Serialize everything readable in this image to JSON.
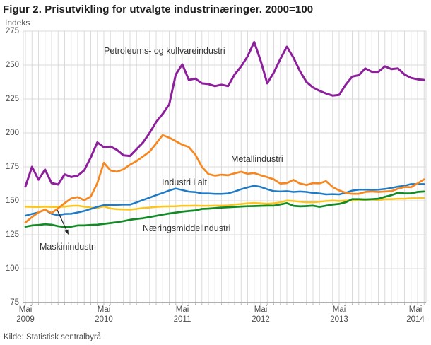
{
  "title": "Figur 2. Prisutvikling for utvalgte industrinæringer. 2000=100",
  "y_axis_label": "Indeks",
  "source": "Kilde: Statistisk sentralbyrå.",
  "colors": {
    "grid": "#DBDBDB",
    "axis": "#808080",
    "month_tick": "#BDBDBD",
    "annotation_arrow": "#222222",
    "title_text": "#1F1F1F",
    "tick_text": "#4D4D4D",
    "label_text": "#333333"
  },
  "chart_data": {
    "type": "line",
    "title": "Figur 2. Prisutvikling for utvalgte industrinæringer. 2000=100",
    "xlabel": "",
    "ylabel": "Indeks",
    "ylim": [
      75,
      275
    ],
    "grid": true,
    "legend": "inline-labels",
    "x_frequency": "monthly",
    "x_range": [
      "2009-05",
      "2014-06"
    ],
    "y_ticks": [
      275,
      250,
      225,
      200,
      175,
      150,
      125,
      100,
      75
    ],
    "x_ticks": [
      {
        "month": "Mai",
        "year": "2009"
      },
      {
        "month": "Mai",
        "year": "2010"
      },
      {
        "month": "Mai",
        "year": "2011"
      },
      {
        "month": "Mai",
        "year": "2012"
      },
      {
        "month": "Mai",
        "year": "2013"
      },
      {
        "month": "Mai",
        "year": "2014"
      }
    ],
    "series": [
      {
        "id": "petroleum",
        "name": "Petroleums- og kullvareindustri",
        "color": "#8E1F9C",
        "values": [
          160.5,
          175,
          165.5,
          173,
          163,
          162,
          169.5,
          167.5,
          168.5,
          172.5,
          182,
          193,
          189.5,
          190,
          187.5,
          183.5,
          183,
          188,
          193,
          200,
          208,
          214,
          221,
          243,
          250.5,
          239,
          240,
          236.5,
          236,
          234.5,
          235.5,
          234.5,
          243,
          249,
          256.5,
          267,
          253,
          236.5,
          244.5,
          254.5,
          263.5,
          255.5,
          245.5,
          237.5,
          233.5,
          231,
          229,
          227.5,
          228,
          235.5,
          241.5,
          242.5,
          247.5,
          245,
          245,
          249,
          247,
          247.5,
          243,
          240.5,
          239.5,
          239
        ]
      },
      {
        "id": "metall",
        "name": "Metallindustri",
        "color": "#F6871F",
        "values": [
          134,
          138,
          141.5,
          143.5,
          141,
          144.5,
          148.3,
          151.7,
          152.7,
          150.4,
          153.2,
          163,
          178,
          172.4,
          171.4,
          173.2,
          176.6,
          179.2,
          182.7,
          186.2,
          192.2,
          198.4,
          196.5,
          193.9,
          191.3,
          189.6,
          184,
          175,
          169.7,
          168.5,
          169.2,
          168.8,
          170.2,
          171.4,
          169.9,
          170.4,
          168.8,
          167.4,
          165.8,
          162.7,
          163,
          165.4,
          162.7,
          161.6,
          163,
          162.8,
          164.5,
          160.2,
          157.6,
          155.9,
          155.1,
          155.1,
          156.5,
          156.8,
          156.5,
          156.8,
          157.1,
          158.9,
          160.2,
          160,
          162.8,
          165.8
        ]
      },
      {
        "id": "industri",
        "name": "Industri i alt",
        "color": "#1F7AC6",
        "values": [
          139,
          140.3,
          141.4,
          143.4,
          140.4,
          139.3,
          140.3,
          140.4,
          141.4,
          142.5,
          144,
          145.5,
          146.8,
          147,
          147,
          147.2,
          147.2,
          148.8,
          150.6,
          152.3,
          154.1,
          155.8,
          157.6,
          159,
          157.9,
          156.7,
          156.4,
          155.4,
          155.4,
          155.1,
          155.1,
          155.4,
          156.8,
          158.5,
          159.9,
          161.1,
          160.2,
          158.5,
          157.1,
          156.8,
          157.1,
          156.5,
          156.8,
          156.5,
          155.8,
          155.4,
          154.7,
          154.9,
          154.7,
          155.9,
          157.5,
          158.2,
          158.2,
          158,
          158.2,
          158.7,
          159.5,
          160.4,
          161.1,
          162.3,
          162.3,
          162.3
        ]
      },
      {
        "id": "naeringsmiddel",
        "name": "Næringsmiddelindustri",
        "color": "#128A26",
        "values": [
          130.9,
          131.8,
          132.2,
          132.7,
          132.4,
          131.3,
          130.6,
          130.9,
          131.8,
          131.8,
          132.2,
          132.4,
          133,
          133.6,
          134.2,
          135,
          136,
          136.6,
          137.2,
          138,
          138.9,
          139.8,
          140.6,
          141.3,
          142,
          142.5,
          142.9,
          144,
          144.2,
          144.6,
          145,
          145.2,
          145.5,
          145.8,
          146,
          146.1,
          146.3,
          146.4,
          146.4,
          147.3,
          148.3,
          146.3,
          145.9,
          146.1,
          146.4,
          145.5,
          146.4,
          147.2,
          147.7,
          148.9,
          151.2,
          151.2,
          151,
          151.2,
          151.5,
          152.9,
          154.1,
          155.9,
          155.4,
          155.4,
          156.5,
          156.8
        ]
      },
      {
        "id": "maskin",
        "name": "Maskinindustri",
        "color": "#FBC51D",
        "values": [
          145.6,
          145.5,
          145.4,
          145.6,
          145.4,
          145.5,
          145.7,
          146.2,
          146.4,
          145.6,
          145,
          144.7,
          145.9,
          144.3,
          143.8,
          143.6,
          143.5,
          144,
          144.7,
          145,
          145.5,
          145.8,
          145.9,
          146,
          146.3,
          146.3,
          146.4,
          146.3,
          146.3,
          146.4,
          146.4,
          146.6,
          147.2,
          147.6,
          148.1,
          148.4,
          148.1,
          147.8,
          148.1,
          148.9,
          150.1,
          149.8,
          149.4,
          148.9,
          148.9,
          149.4,
          149.8,
          150.1,
          149.8,
          150.1,
          150.1,
          150.6,
          150.6,
          150.9,
          150.6,
          151.2,
          151.2,
          151.5,
          151.5,
          151.9,
          151.9,
          152.1
        ]
      }
    ]
  }
}
